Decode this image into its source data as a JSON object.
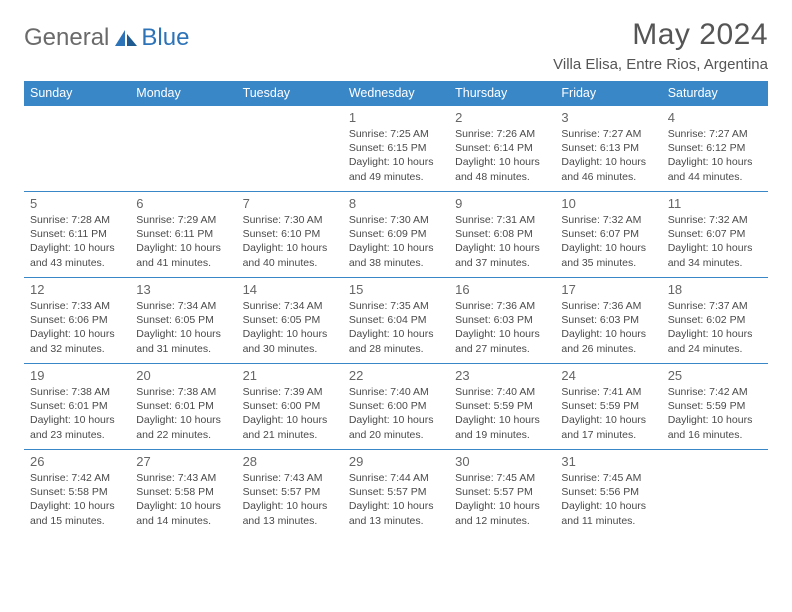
{
  "logo": {
    "textA": "General",
    "textB": "Blue",
    "accent": "#2d73b8"
  },
  "title": "May 2024",
  "location": "Villa Elisa, Entre Rios, Argentina",
  "colors": {
    "header_bg": "#3a87c8",
    "header_text": "#ffffff",
    "border": "#3a87c8",
    "body_text": "#4a4a4a",
    "daynum": "#666666"
  },
  "daysOfWeek": [
    "Sunday",
    "Monday",
    "Tuesday",
    "Wednesday",
    "Thursday",
    "Friday",
    "Saturday"
  ],
  "weeks": [
    [
      null,
      null,
      null,
      {
        "n": "1",
        "sr": "7:25 AM",
        "ss": "6:15 PM",
        "dl": "10 hours and 49 minutes."
      },
      {
        "n": "2",
        "sr": "7:26 AM",
        "ss": "6:14 PM",
        "dl": "10 hours and 48 minutes."
      },
      {
        "n": "3",
        "sr": "7:27 AM",
        "ss": "6:13 PM",
        "dl": "10 hours and 46 minutes."
      },
      {
        "n": "4",
        "sr": "7:27 AM",
        "ss": "6:12 PM",
        "dl": "10 hours and 44 minutes."
      }
    ],
    [
      {
        "n": "5",
        "sr": "7:28 AM",
        "ss": "6:11 PM",
        "dl": "10 hours and 43 minutes."
      },
      {
        "n": "6",
        "sr": "7:29 AM",
        "ss": "6:11 PM",
        "dl": "10 hours and 41 minutes."
      },
      {
        "n": "7",
        "sr": "7:30 AM",
        "ss": "6:10 PM",
        "dl": "10 hours and 40 minutes."
      },
      {
        "n": "8",
        "sr": "7:30 AM",
        "ss": "6:09 PM",
        "dl": "10 hours and 38 minutes."
      },
      {
        "n": "9",
        "sr": "7:31 AM",
        "ss": "6:08 PM",
        "dl": "10 hours and 37 minutes."
      },
      {
        "n": "10",
        "sr": "7:32 AM",
        "ss": "6:07 PM",
        "dl": "10 hours and 35 minutes."
      },
      {
        "n": "11",
        "sr": "7:32 AM",
        "ss": "6:07 PM",
        "dl": "10 hours and 34 minutes."
      }
    ],
    [
      {
        "n": "12",
        "sr": "7:33 AM",
        "ss": "6:06 PM",
        "dl": "10 hours and 32 minutes."
      },
      {
        "n": "13",
        "sr": "7:34 AM",
        "ss": "6:05 PM",
        "dl": "10 hours and 31 minutes."
      },
      {
        "n": "14",
        "sr": "7:34 AM",
        "ss": "6:05 PM",
        "dl": "10 hours and 30 minutes."
      },
      {
        "n": "15",
        "sr": "7:35 AM",
        "ss": "6:04 PM",
        "dl": "10 hours and 28 minutes."
      },
      {
        "n": "16",
        "sr": "7:36 AM",
        "ss": "6:03 PM",
        "dl": "10 hours and 27 minutes."
      },
      {
        "n": "17",
        "sr": "7:36 AM",
        "ss": "6:03 PM",
        "dl": "10 hours and 26 minutes."
      },
      {
        "n": "18",
        "sr": "7:37 AM",
        "ss": "6:02 PM",
        "dl": "10 hours and 24 minutes."
      }
    ],
    [
      {
        "n": "19",
        "sr": "7:38 AM",
        "ss": "6:01 PM",
        "dl": "10 hours and 23 minutes."
      },
      {
        "n": "20",
        "sr": "7:38 AM",
        "ss": "6:01 PM",
        "dl": "10 hours and 22 minutes."
      },
      {
        "n": "21",
        "sr": "7:39 AM",
        "ss": "6:00 PM",
        "dl": "10 hours and 21 minutes."
      },
      {
        "n": "22",
        "sr": "7:40 AM",
        "ss": "6:00 PM",
        "dl": "10 hours and 20 minutes."
      },
      {
        "n": "23",
        "sr": "7:40 AM",
        "ss": "5:59 PM",
        "dl": "10 hours and 19 minutes."
      },
      {
        "n": "24",
        "sr": "7:41 AM",
        "ss": "5:59 PM",
        "dl": "10 hours and 17 minutes."
      },
      {
        "n": "25",
        "sr": "7:42 AM",
        "ss": "5:59 PM",
        "dl": "10 hours and 16 minutes."
      }
    ],
    [
      {
        "n": "26",
        "sr": "7:42 AM",
        "ss": "5:58 PM",
        "dl": "10 hours and 15 minutes."
      },
      {
        "n": "27",
        "sr": "7:43 AM",
        "ss": "5:58 PM",
        "dl": "10 hours and 14 minutes."
      },
      {
        "n": "28",
        "sr": "7:43 AM",
        "ss": "5:57 PM",
        "dl": "10 hours and 13 minutes."
      },
      {
        "n": "29",
        "sr": "7:44 AM",
        "ss": "5:57 PM",
        "dl": "10 hours and 13 minutes."
      },
      {
        "n": "30",
        "sr": "7:45 AM",
        "ss": "5:57 PM",
        "dl": "10 hours and 12 minutes."
      },
      {
        "n": "31",
        "sr": "7:45 AM",
        "ss": "5:56 PM",
        "dl": "10 hours and 11 minutes."
      },
      null
    ]
  ]
}
